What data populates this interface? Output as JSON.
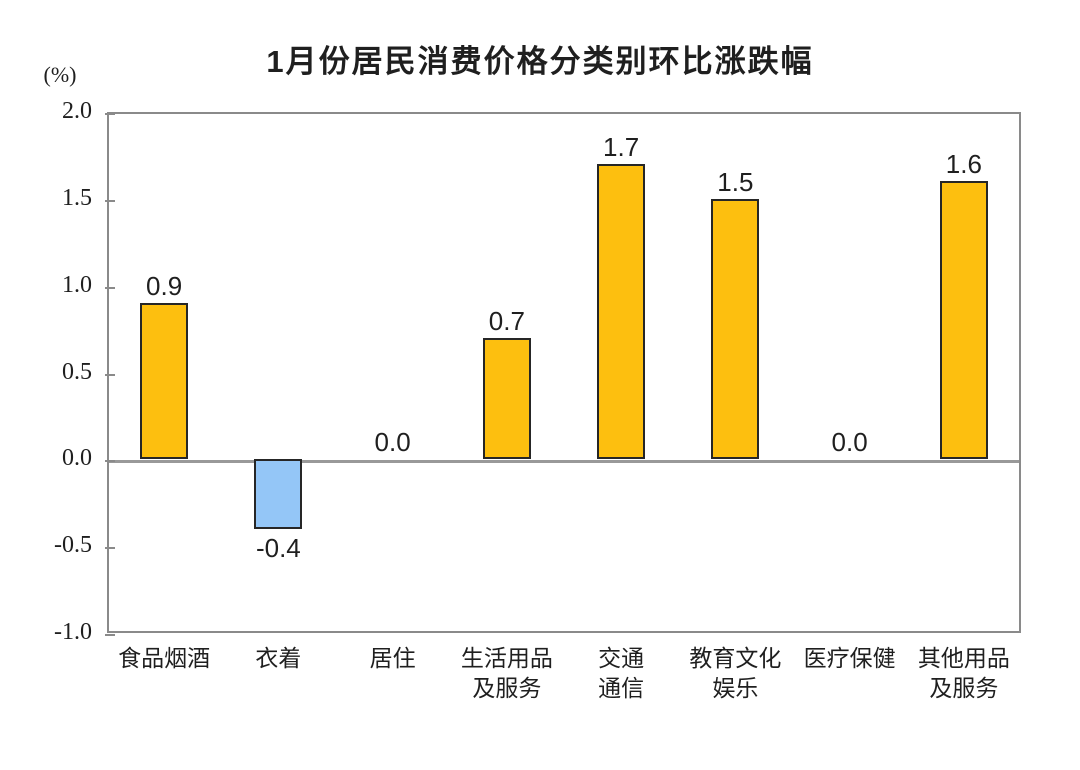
{
  "chart_data": {
    "type": "bar",
    "title": "1月份居民消费价格分类别环比涨跌幅",
    "unit_label": "(%)",
    "categories": [
      "食品烟酒",
      "衣着",
      "居住",
      "生活用品\n及服务",
      "交通\n通信",
      "教育文化\n娱乐",
      "医疗保健",
      "其他用品\n及服务"
    ],
    "values": [
      0.9,
      -0.4,
      0.0,
      0.7,
      1.7,
      1.5,
      0.0,
      1.6
    ],
    "value_labels": [
      "0.9",
      "-0.4",
      "0.0",
      "0.7",
      "1.7",
      "1.5",
      "0.0",
      "1.6"
    ],
    "y_ticks": [
      2.0,
      1.5,
      1.0,
      0.5,
      0.0,
      -0.5,
      -1.0
    ],
    "y_tick_labels": [
      "2.0",
      "1.5",
      "1.0",
      "0.5",
      "0.0",
      "-0.5",
      "-1.0"
    ],
    "ylim": [
      -1.0,
      2.0
    ],
    "xlabel": "",
    "ylabel": "(%)",
    "grid": false,
    "legend": "none",
    "colors": {
      "positive_bar": "#FDBF0F",
      "negative_bar": "#94C6F7",
      "bar_border": "#262626",
      "axis": "#8a8a8a",
      "zero_line": "#999999",
      "text": "#1f1f1f"
    }
  }
}
